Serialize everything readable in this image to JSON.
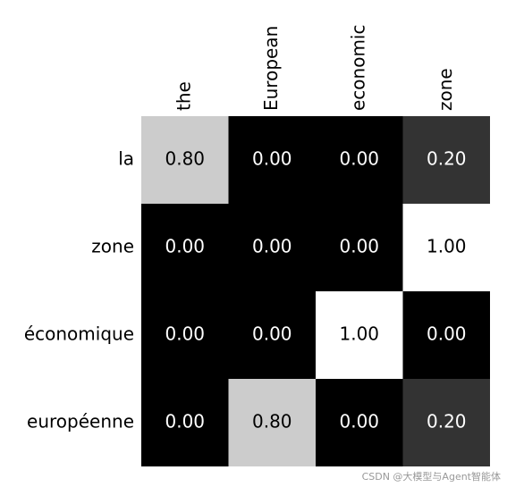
{
  "chart_data": {
    "type": "heatmap",
    "x_categories": [
      "the",
      "European",
      "economic",
      "zone"
    ],
    "y_categories": [
      "la",
      "zone",
      "économique",
      "européenne"
    ],
    "values": [
      [
        0.8,
        0,
        0,
        0.2
      ],
      [
        0,
        0,
        0,
        1
      ],
      [
        0,
        0,
        1,
        0
      ],
      [
        0,
        0.8,
        0,
        0.2
      ]
    ],
    "value_labels": [
      [
        "0.80",
        "0.00",
        "0.00",
        "0.20"
      ],
      [
        "0.00",
        "0.00",
        "0.00",
        "1.00"
      ],
      [
        "0.00",
        "0.00",
        "1.00",
        "0.00"
      ],
      [
        "0.00",
        "0.80",
        "0.00",
        "0.20"
      ]
    ],
    "colormap": "gray"
  },
  "watermark": "CSDN @大模型与Agent智能体"
}
